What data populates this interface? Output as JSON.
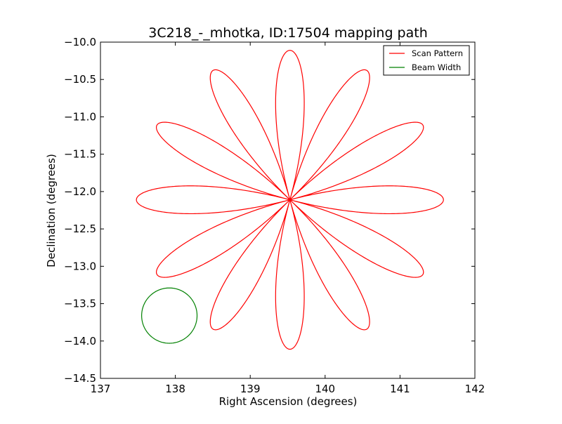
{
  "chart_data": {
    "type": "line",
    "title": "3C218_-_mhotka, ID:17504 mapping path",
    "xlabel": "Right Ascension (degrees)",
    "ylabel": "Declination (degrees)",
    "xlim": [
      137,
      142
    ],
    "ylim": [
      -14.5,
      -10.0
    ],
    "y_inverted": true,
    "xticks": [
      137,
      138,
      139,
      140,
      141,
      142
    ],
    "xtick_labels": [
      "137",
      "138",
      "139",
      "140",
      "141",
      "142"
    ],
    "yticks": [
      -10.0,
      -10.5,
      -11.0,
      -11.5,
      -12.0,
      -12.5,
      -13.0,
      -13.5,
      -14.0,
      -14.5
    ],
    "ytick_labels": [
      "−10.0",
      "−10.5",
      "−11.0",
      "−11.5",
      "−12.0",
      "−12.5",
      "−13.0",
      "−13.5",
      "−14.0",
      "−14.5"
    ],
    "grid": false,
    "legend_position": "top-right",
    "series": [
      {
        "name": "Scan Pattern",
        "color": "#ff0000",
        "shape": "rose",
        "center": [
          139.53,
          -12.11
        ],
        "radius_ra": 2.05,
        "radius_dec": 2.0,
        "petals": 12,
        "petal_tips": [
          [
            139.53,
            -10.11
          ],
          [
            140.53,
            -10.38
          ],
          [
            141.26,
            -11.11
          ],
          [
            141.58,
            -12.11
          ],
          [
            141.26,
            -13.11
          ],
          [
            140.53,
            -13.84
          ],
          [
            139.53,
            -14.11
          ],
          [
            138.53,
            -13.84
          ],
          [
            137.8,
            -13.11
          ],
          [
            137.48,
            -12.11
          ],
          [
            137.8,
            -11.11
          ],
          [
            138.53,
            -10.38
          ]
        ]
      },
      {
        "name": "Beam Width",
        "color": "#008000",
        "shape": "circle",
        "center": [
          137.92,
          -13.66
        ],
        "radius_ra": 0.37,
        "radius_dec": 0.37
      }
    ]
  }
}
